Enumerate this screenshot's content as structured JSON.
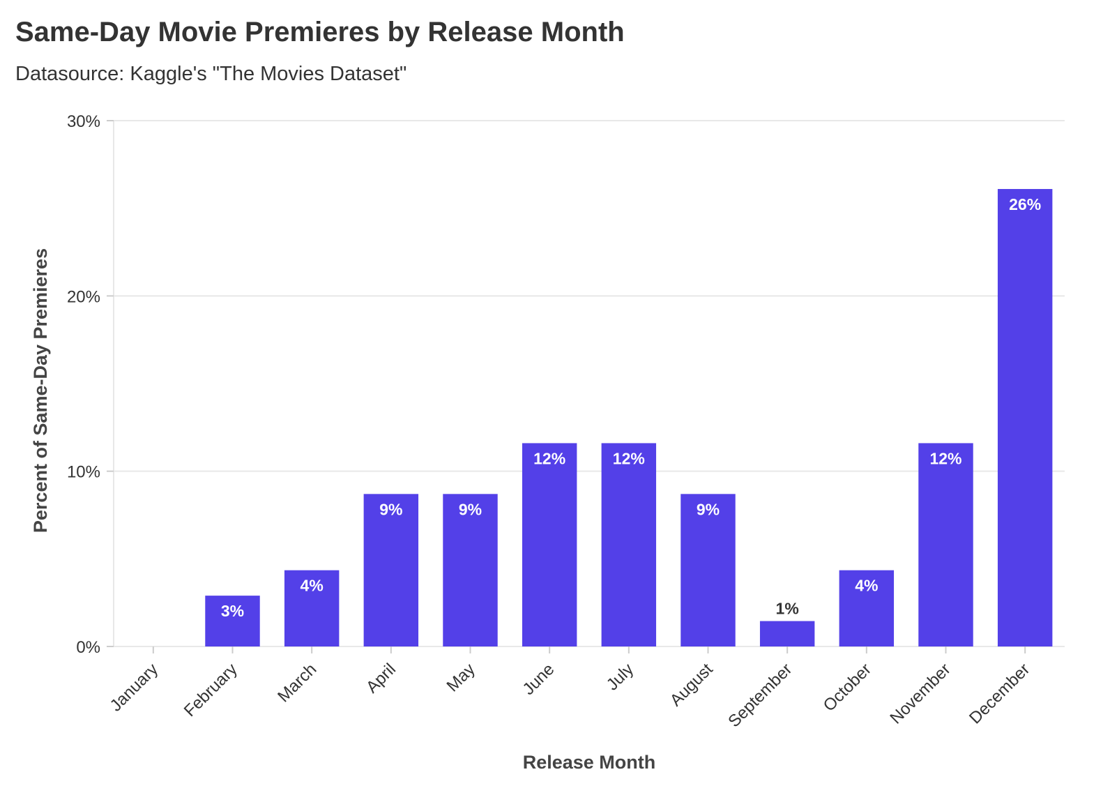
{
  "title": "Same-Day Movie Premieres by Release Month",
  "subtitle": "Datasource: Kaggle's \"The Movies Dataset\"",
  "colors": {
    "bar": "#5340e8",
    "grid": "#e8e8e8",
    "text": "#333333",
    "label_inside": "#ffffff",
    "label_outside": "#333333"
  },
  "chart_data": {
    "type": "bar",
    "title": "Same-Day Movie Premieres by Release Month",
    "subtitle": "Datasource: Kaggle's \"The Movies Dataset\"",
    "xlabel": "Release Month",
    "ylabel": "Percent of Same-Day Premieres",
    "categories": [
      "January",
      "February",
      "March",
      "April",
      "May",
      "June",
      "July",
      "August",
      "September",
      "October",
      "November",
      "December"
    ],
    "values": [
      0,
      2.9,
      4.35,
      8.7,
      8.7,
      11.6,
      11.6,
      8.7,
      1.45,
      4.35,
      11.6,
      26.1
    ],
    "data_labels": [
      "",
      "3%",
      "4%",
      "9%",
      "9%",
      "12%",
      "12%",
      "9%",
      "1%",
      "4%",
      "12%",
      "26%"
    ],
    "ylim": [
      0,
      30
    ],
    "yticks": [
      0,
      10,
      20,
      30
    ],
    "ytick_labels": [
      "0%",
      "10%",
      "20%",
      "30%"
    ],
    "grid": true,
    "legend": "none"
  }
}
